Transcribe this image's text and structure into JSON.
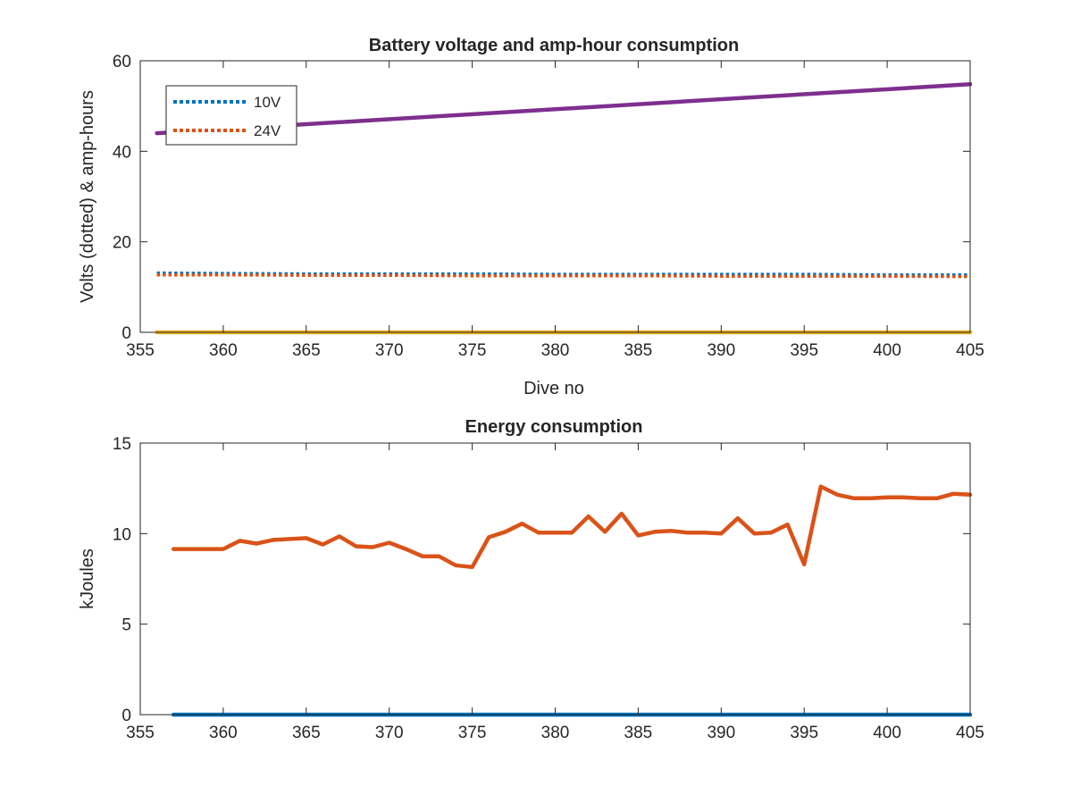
{
  "chart_data": [
    {
      "type": "line",
      "title": "Battery voltage and amp-hour consumption",
      "xlabel": "Dive no",
      "ylabel": "Volts (dotted) & amp-hours",
      "xlim": [
        355,
        405
      ],
      "ylim": [
        0,
        60
      ],
      "xticks": [
        355,
        360,
        365,
        370,
        375,
        380,
        385,
        390,
        395,
        400,
        405
      ],
      "yticks": [
        0,
        20,
        40,
        60
      ],
      "grid": false,
      "legend": "top-left",
      "series": [
        {
          "name": "10V",
          "style": "dotted",
          "color": "#0072BD",
          "x": [
            356,
            360,
            365,
            370,
            375,
            380,
            385,
            390,
            395,
            400,
            405
          ],
          "y": [
            13.1,
            13.0,
            12.9,
            12.9,
            12.9,
            12.8,
            12.8,
            12.8,
            12.8,
            12.7,
            12.7
          ]
        },
        {
          "name": "24V",
          "style": "dotted",
          "color": "#D95319",
          "x": [
            356,
            360,
            365,
            370,
            375,
            380,
            385,
            390,
            395,
            400,
            405
          ],
          "y": [
            12.7,
            12.7,
            12.6,
            12.6,
            12.5,
            12.5,
            12.5,
            12.4,
            12.4,
            12.4,
            12.3
          ]
        },
        {
          "style": "solid",
          "color": "#7E2F8E",
          "x": [
            356,
            405
          ],
          "y": [
            44.0,
            54.8
          ]
        },
        {
          "style": "solid",
          "color": "#EDB120",
          "x": [
            356,
            405
          ],
          "y": [
            0,
            0
          ]
        }
      ]
    },
    {
      "type": "line",
      "title": "Energy consumption",
      "xlabel": "",
      "ylabel": "kJoules",
      "xlim": [
        355,
        405
      ],
      "ylim": [
        0,
        15
      ],
      "xticks": [
        355,
        360,
        365,
        370,
        375,
        380,
        385,
        390,
        395,
        400,
        405
      ],
      "yticks": [
        0,
        5,
        10,
        15
      ],
      "grid": false,
      "series": [
        {
          "style": "solid",
          "color": "#D95319",
          "x": [
            357,
            358,
            359,
            360,
            361,
            362,
            363,
            364,
            365,
            366,
            367,
            368,
            369,
            370,
            371,
            372,
            373,
            374,
            375,
            376,
            377,
            378,
            379,
            380,
            381,
            382,
            383,
            384,
            385,
            386,
            387,
            388,
            389,
            390,
            391,
            392,
            393,
            394,
            395,
            396,
            397,
            398,
            399,
            400,
            401,
            402,
            403,
            404,
            405
          ],
          "y": [
            9.15,
            9.15,
            9.15,
            9.15,
            9.6,
            9.45,
            9.65,
            9.7,
            9.75,
            9.4,
            9.85,
            9.3,
            9.25,
            9.5,
            9.15,
            8.75,
            8.75,
            8.25,
            8.15,
            9.8,
            10.1,
            10.55,
            10.05,
            10.05,
            10.05,
            10.95,
            10.1,
            11.1,
            9.9,
            10.1,
            10.15,
            10.05,
            10.05,
            10.0,
            10.85,
            10.0,
            10.05,
            10.5,
            8.3,
            12.6,
            12.15,
            11.95,
            11.95,
            12.0,
            12.0,
            11.95,
            11.95,
            12.2,
            12.15
          ]
        },
        {
          "style": "solid",
          "color": "#0072BD",
          "x": [
            357,
            405
          ],
          "y": [
            0,
            0
          ]
        }
      ]
    }
  ]
}
